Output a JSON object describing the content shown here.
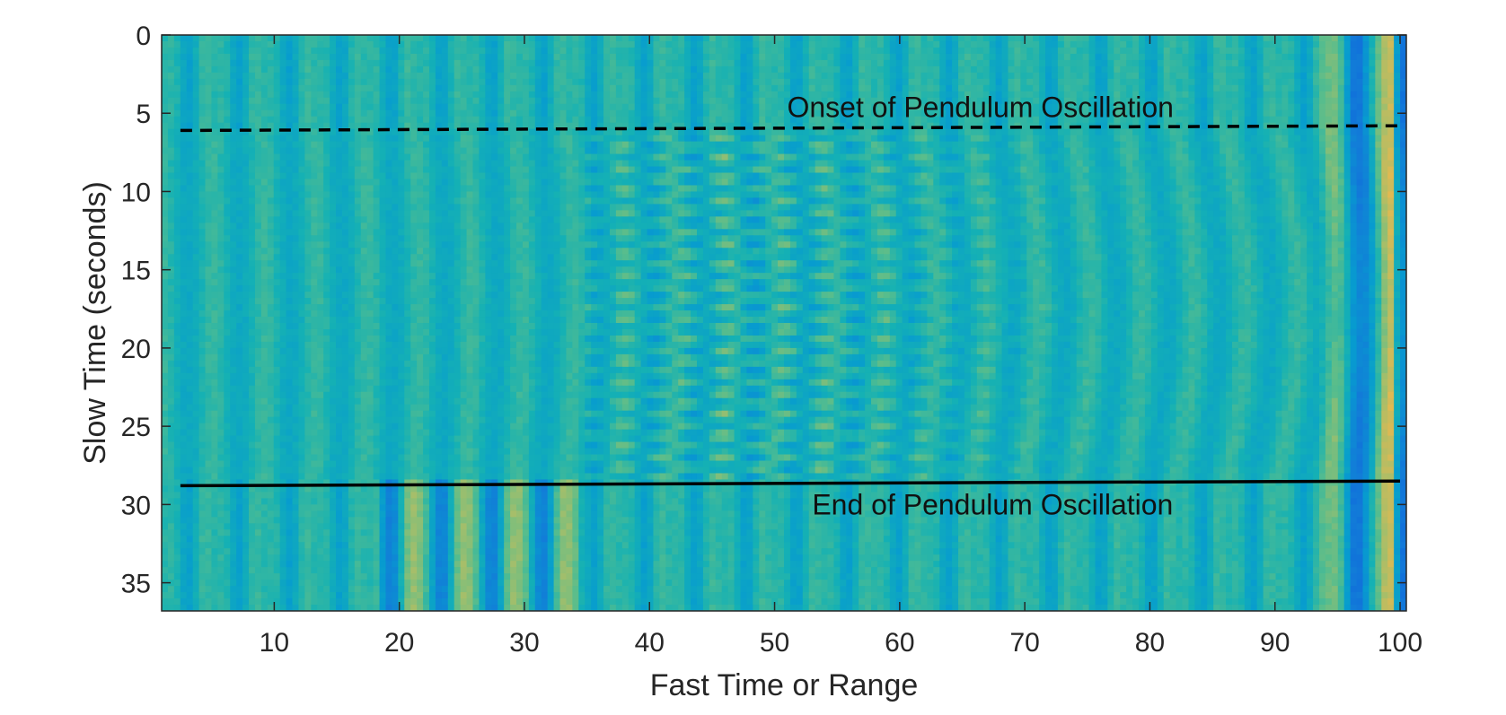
{
  "chart_data": {
    "type": "heatmap",
    "title": "",
    "xlabel": "Fast Time or Range",
    "ylabel": "Slow Time (seconds)",
    "xlim": [
      1,
      100.5
    ],
    "ylim": [
      0,
      36.8
    ],
    "y_reversed": true,
    "grid": false,
    "colormap": "parula",
    "x_ticks": [
      10,
      20,
      30,
      40,
      50,
      60,
      70,
      80,
      90,
      100
    ],
    "y_ticks": [
      0,
      5,
      10,
      15,
      20,
      25,
      30,
      35
    ],
    "lines": [
      {
        "name": "onset",
        "style": "dashed",
        "color": "#000000",
        "points": [
          [
            2.5,
            6.1
          ],
          [
            100,
            5.8
          ]
        ]
      },
      {
        "name": "end",
        "style": "solid",
        "color": "#000000",
        "points": [
          [
            2.5,
            28.8
          ],
          [
            100,
            28.5
          ]
        ]
      }
    ],
    "annotations": [
      {
        "text": "Onset of Pendulum Oscillation",
        "x": 51,
        "y": 4.6
      },
      {
        "text": "End of Pendulum Oscillation",
        "x": 53,
        "y": 30.0
      }
    ],
    "oscillation_window": [
      6,
      28.5
    ]
  }
}
